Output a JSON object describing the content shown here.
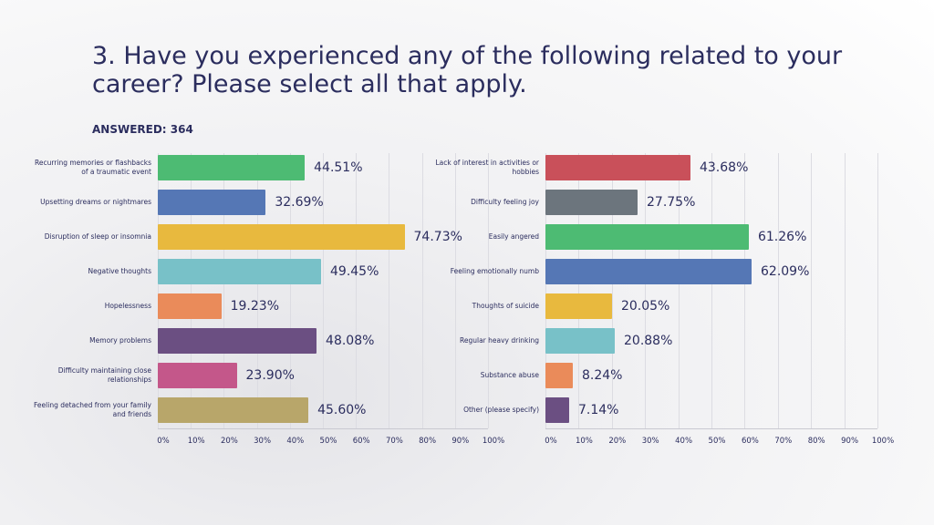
{
  "title": "3. Have you experienced any of the following related to your career? Please select all that apply.",
  "subtitle": "ANSWERED: 364",
  "chart_data": [
    {
      "type": "bar",
      "orientation": "horizontal",
      "categories": [
        "Recurring memories or flashbacks of a traumatic event",
        "Upsetting dreams or nightmares",
        "Disruption of sleep or insomnia",
        "Negative thoughts",
        "Hopelessness",
        "Memory problems",
        "Difficulty maintaining close relationships",
        "Feeling detached from your family and friends"
      ],
      "values": [
        44.51,
        32.69,
        74.73,
        49.45,
        19.23,
        48.08,
        23.9,
        45.6
      ],
      "value_labels": [
        "44.51%",
        "32.69%",
        "74.73%",
        "49.45%",
        "19.23%",
        "48.08%",
        "23.90%",
        "45.60%"
      ],
      "colors": [
        "#4dbb73",
        "#5577b5",
        "#e8b93e",
        "#78c1c8",
        "#ea8b5a",
        "#6b4f82",
        "#c4578a",
        "#b8a66a"
      ],
      "xlim": [
        0,
        100
      ],
      "xticks": [
        {
          "value": 0,
          "label": "0%"
        },
        {
          "value": 10,
          "label": "10%"
        },
        {
          "value": 20,
          "label": "20%"
        },
        {
          "value": 30,
          "label": "30%"
        },
        {
          "value": 40,
          "label": "40%"
        },
        {
          "value": 50,
          "label": "50%"
        },
        {
          "value": 60,
          "label": "60%"
        },
        {
          "value": 70,
          "label": "70%"
        },
        {
          "value": 80,
          "label": "80%"
        },
        {
          "value": 90,
          "label": "90%"
        },
        {
          "value": 100,
          "label": "100%"
        }
      ],
      "grid": true
    },
    {
      "type": "bar",
      "orientation": "horizontal",
      "categories": [
        "Lack of interest in activities or hobbies",
        "Difficulty feeling joy",
        "Easily angered",
        "Feeling emotionally numb",
        "Thoughts of suicide",
        "Regular heavy drinking",
        "Substance abuse",
        "Other (please specify)"
      ],
      "values": [
        43.68,
        27.75,
        61.26,
        62.09,
        20.05,
        20.88,
        8.24,
        7.14
      ],
      "value_labels": [
        "43.68%",
        "27.75%",
        "61.26%",
        "62.09%",
        "20.05%",
        "20.88%",
        "8.24%",
        "7.14%"
      ],
      "colors": [
        "#c9505a",
        "#6c757d",
        "#4dbb73",
        "#5577b5",
        "#e8b93e",
        "#78c1c8",
        "#ea8b5a",
        "#6b4f82"
      ],
      "xlim": [
        0,
        100
      ],
      "xticks": [
        {
          "value": 0,
          "label": "0%"
        },
        {
          "value": 10,
          "label": "10%"
        },
        {
          "value": 20,
          "label": "20%"
        },
        {
          "value": 30,
          "label": "30%"
        },
        {
          "value": 40,
          "label": "40%"
        },
        {
          "value": 50,
          "label": "50%"
        },
        {
          "value": 60,
          "label": "60%"
        },
        {
          "value": 70,
          "label": "70%"
        },
        {
          "value": 80,
          "label": "80%"
        },
        {
          "value": 90,
          "label": "90%"
        },
        {
          "value": 100,
          "label": "100%"
        }
      ],
      "grid": true
    }
  ]
}
